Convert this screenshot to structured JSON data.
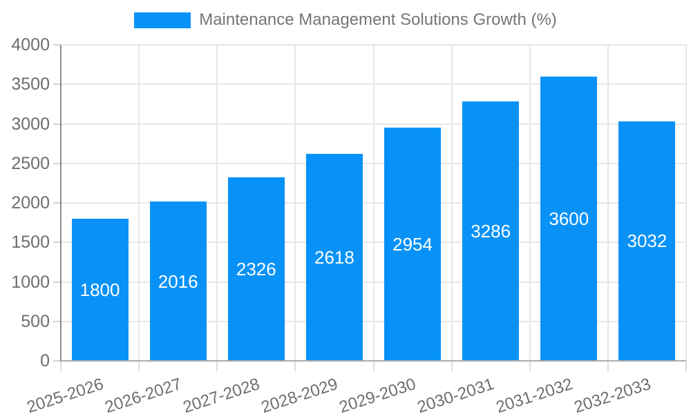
{
  "legend": {
    "label": "Maintenance Management Solutions Growth (%)"
  },
  "chart_data": {
    "type": "bar",
    "title": "Maintenance Management Solutions Growth (%)",
    "categories": [
      "2025-2026",
      "2026-2027",
      "2027-2028",
      "2028-2029",
      "2029-2030",
      "2030-2031",
      "2031-2032",
      "2032-2033"
    ],
    "series": [
      {
        "name": "Maintenance Management Solutions Growth (%)",
        "values": [
          1800,
          2016,
          2326,
          2618,
          2954,
          3286,
          3600,
          3032
        ]
      }
    ],
    "value_labels": [
      1800,
      2016,
      2326,
      2618,
      2954,
      3286,
      3600,
      3032
    ],
    "xlabel": "",
    "ylabel": "",
    "ylim": [
      0,
      4000
    ],
    "yticks": [
      0,
      500,
      1000,
      1500,
      2000,
      2500,
      3000,
      3500,
      4000
    ],
    "grid": true,
    "legend_position": "top",
    "xtick_rotation_deg": -18,
    "value_label_position": "inside-center"
  },
  "colors": {
    "bar": "#0892f8",
    "value_label": "#ffffff",
    "grid_line": "#e6e6e6",
    "y_axis_line": "#8d8d8d",
    "x_axis_line": "#ababab",
    "y_tick_mark": "#d2d2d2",
    "x_tick_mark": "#dcdcdc",
    "tick_label_text": "#6e6e6e",
    "legend_text": "#757575"
  }
}
